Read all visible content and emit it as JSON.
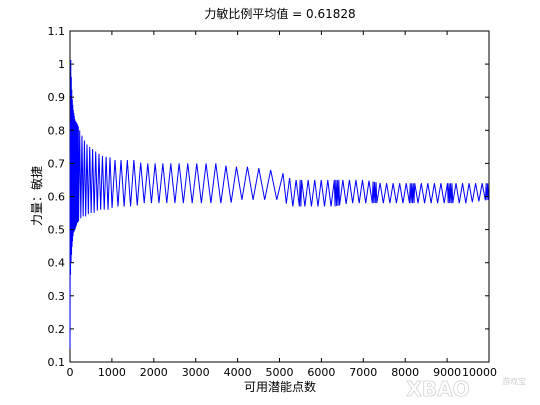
{
  "chart_data": {
    "type": "line",
    "title": "力敏比例平均值 = 0.61828",
    "xlabel": "可用潜能点数",
    "ylabel": "力量：敏捷",
    "xlim": [
      0,
      10000
    ],
    "ylim": [
      0.1,
      1.1
    ],
    "xticks": [
      0,
      1000,
      2000,
      3000,
      4000,
      5000,
      6000,
      7000,
      8000,
      9000,
      10000
    ],
    "xtick_labels": [
      "0",
      "1000",
      "2000",
      "3000",
      "4000",
      "5000",
      "6000",
      "7000",
      "8000",
      "9000",
      "10000"
    ],
    "yticks": [
      0.1,
      0.2,
      0.3,
      0.4,
      0.5,
      0.6,
      0.7,
      0.8,
      0.9,
      1.0,
      1.1
    ],
    "ytick_labels": [
      "0.1",
      "0.2",
      "0.3",
      "0.4",
      "0.5",
      "0.6",
      "0.7",
      "0.8",
      "0.9",
      "1",
      "1.1"
    ],
    "grid": false,
    "series_color": "#0000ff",
    "series": [
      {
        "x": [
          1,
          12,
          25,
          50,
          80,
          120,
          170,
          230,
          300,
          380,
          470,
          570,
          680,
          800,
          930,
          1070,
          1220,
          1380,
          1550,
          1730,
          1920,
          2120,
          2330,
          2550,
          2780,
          3020,
          3270,
          3530,
          3800,
          4080,
          4370,
          4670,
          4980,
          5300,
          5630,
          5970,
          6320,
          6680,
          7050,
          7430,
          7820,
          8220,
          8630,
          9050,
          9480,
          10000
        ],
        "low": [
          0.14,
          0.36,
          0.4,
          0.45,
          0.49,
          0.5,
          0.52,
          0.53,
          0.54,
          0.54,
          0.55,
          0.55,
          0.56,
          0.56,
          0.56,
          0.57,
          0.57,
          0.57,
          0.57,
          0.58,
          0.58,
          0.58,
          0.58,
          0.58,
          0.58,
          0.58,
          0.58,
          0.58,
          0.58,
          0.59,
          0.59,
          0.59,
          0.59,
          0.57,
          0.57,
          0.57,
          0.57,
          0.58,
          0.58,
          0.58,
          0.58,
          0.58,
          0.58,
          0.58,
          0.58,
          0.59
        ],
        "high": [
          0.55,
          1.05,
          0.98,
          0.9,
          0.86,
          0.83,
          0.82,
          0.8,
          0.78,
          0.76,
          0.75,
          0.74,
          0.73,
          0.72,
          0.72,
          0.71,
          0.71,
          0.71,
          0.71,
          0.7,
          0.7,
          0.7,
          0.7,
          0.7,
          0.7,
          0.7,
          0.7,
          0.7,
          0.69,
          0.69,
          0.69,
          0.68,
          0.68,
          0.65,
          0.65,
          0.65,
          0.65,
          0.65,
          0.65,
          0.64,
          0.64,
          0.64,
          0.64,
          0.64,
          0.64,
          0.64
        ]
      }
    ]
  },
  "watermark": {
    "text": "XBAO",
    "subtext": "游戏宝"
  }
}
